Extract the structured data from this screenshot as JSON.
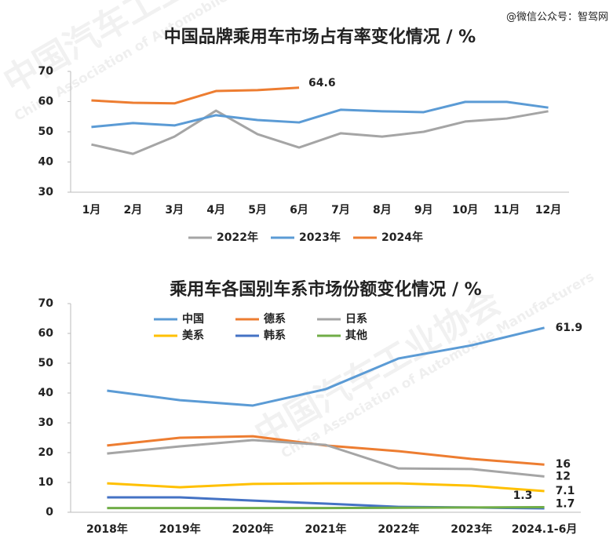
{
  "source": "@微信公众号：智驾网",
  "watermark": {
    "cn": "中国汽车工业协会",
    "en": "China Association of Automobile Manufacturers"
  },
  "chart_data": [
    {
      "type": "line",
      "title": "中国品牌乘用车市场占有率变化情况 / %",
      "categories": [
        "1月",
        "2月",
        "3月",
        "4月",
        "5月",
        "6月",
        "7月",
        "8月",
        "9月",
        "10月",
        "11月",
        "12月"
      ],
      "series": [
        {
          "name": "2022年",
          "color": "#a5a5a5",
          "values": [
            45.8,
            42.7,
            48.4,
            57,
            49.2,
            44.8,
            49.5,
            48.4,
            50,
            53.4,
            54.4,
            56.8
          ]
        },
        {
          "name": "2023年",
          "color": "#5b9bd5",
          "values": [
            51.6,
            52.9,
            52.1,
            55.5,
            53.9,
            53.1,
            57.3,
            56.8,
            56.5,
            59.9,
            59.9,
            58
          ]
        },
        {
          "name": "2024年",
          "color": "#ed7d31",
          "values": [
            60.4,
            59.6,
            59.4,
            63.5,
            63.8,
            64.6,
            null,
            null,
            null,
            null,
            null,
            null
          ]
        }
      ],
      "ylim": [
        30,
        70
      ],
      "yticks": [
        30,
        40,
        50,
        60,
        70
      ],
      "legend": "bottom"
    },
    {
      "type": "line",
      "title": "乘用车各国别车系市场份额变化情况 / %",
      "categories": [
        "2018年",
        "2019年",
        "2020年",
        "2021年",
        "2022年",
        "2023年",
        "2024.1-6月"
      ],
      "series": [
        {
          "name": "中国",
          "color": "#5b9bd5",
          "values": [
            40.8,
            37.6,
            35.8,
            41.3,
            51.6,
            56,
            61.9
          ]
        },
        {
          "name": "德系",
          "color": "#ed7d31",
          "values": [
            22.4,
            25,
            25.5,
            22.4,
            20.5,
            17.9,
            16
          ]
        },
        {
          "name": "日系",
          "color": "#a5a5a5",
          "values": [
            19.7,
            22.1,
            24.2,
            22.6,
            14.7,
            14.5,
            12
          ]
        },
        {
          "name": "美系",
          "color": "#ffc000",
          "values": [
            9.7,
            8.4,
            9.5,
            9.7,
            9.7,
            8.9,
            7.1
          ]
        },
        {
          "name": "韩系",
          "color": "#4472c4",
          "values": [
            5,
            5,
            3.9,
            2.9,
            1.8,
            1.6,
            1.3
          ]
        },
        {
          "name": "其他",
          "color": "#70ad47",
          "values": [
            1.4,
            1.4,
            1.4,
            1.4,
            1.5,
            1.6,
            1.7
          ]
        }
      ],
      "ylim": [
        0,
        70
      ],
      "yticks": [
        0,
        10,
        20,
        30,
        40,
        50,
        60,
        70
      ],
      "legend": "top-left"
    }
  ]
}
